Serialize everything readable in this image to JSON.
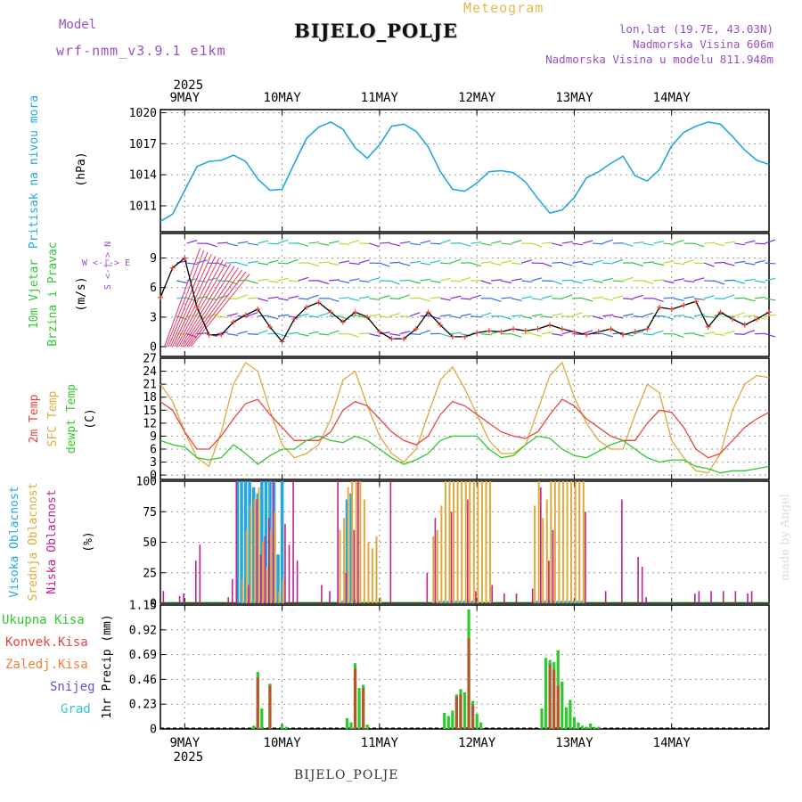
{
  "header": {
    "model_label": "Model",
    "model_name": "wrf-nmm_v3.9.1  e1km",
    "meteogram_label": "Meteogram",
    "station": "BIJELO_POLJE",
    "lonlat": "lon,lat (19.7E, 43.03N)",
    "elevation": "Nadmorska Visina 606m",
    "model_elevation": "Nadmorska Visina u modelu 811.948m"
  },
  "footer": {
    "station": "BIJELO_POLJE",
    "signature": "made by Angel"
  },
  "time_axis": {
    "year": "2025",
    "days": [
      "9MAY",
      "10MAY",
      "11MAY",
      "12MAY",
      "13MAY",
      "14MAY"
    ]
  },
  "colors": {
    "pressure": "#22a7e0",
    "t2m": "#e8453c",
    "sfc": "#e0a93a",
    "dewpt": "#2ec92e",
    "cloud_high": "#22a7e0",
    "cloud_mid": "#e0a93a",
    "cloud_low": "#c0208e",
    "precip_total": "#2ec92e",
    "precip_conv": "#e8453c",
    "purple_label": "#9b4fc4"
  },
  "panels": {
    "pressure": {
      "label_left": "Pritisak na nivou mora",
      "unit": "(hPa)",
      "ticks": [
        "1011",
        "1014",
        "1017",
        "1020"
      ]
    },
    "wind": {
      "label_left_1": "10m Vjetar",
      "label_left_2": "Brzina i Pravac",
      "unit": "(m/s)",
      "ticks": [
        "0",
        "3",
        "6",
        "9"
      ],
      "compass": "W <-|-> E",
      "compass_v": "S <-|-> N"
    },
    "temp": {
      "label_1": "2m Temp",
      "label_2": "SFC Temp",
      "label_3": "dewpt Temp",
      "unit": "(C)",
      "ticks": [
        "0",
        "3",
        "6",
        "9",
        "12",
        "15",
        "18",
        "21",
        "24",
        "27"
      ]
    },
    "cloud": {
      "label_1": "Visoka Oblacnost",
      "label_2": "Srednja Oblacnost",
      "label_3": "Niska Oblacnost",
      "unit": "(%)",
      "ticks": [
        "0",
        "25",
        "50",
        "75",
        "100"
      ]
    },
    "precip": {
      "legend": [
        "Ukupna Kisa",
        "Konvek.Kisa",
        "Zaledj.Kisa",
        "Snijeg",
        "Grad"
      ],
      "unit": "1hr Precip (mm)",
      "ticks": [
        "0",
        "0.23",
        "0.46",
        "0.69",
        "0.92",
        "1.15"
      ]
    }
  },
  "chart_data": [
    {
      "type": "line",
      "title": "",
      "ylabel": "Pritisak na nivou mora (hPa)",
      "ylim": [
        1008.5,
        1020.3
      ],
      "x_unit": "hours from 9 MAY 00 UTC",
      "series": [
        {
          "name": "Pritisak na nivou mora",
          "x": [
            -6,
            -3,
            0,
            3,
            6,
            9,
            12,
            15,
            18,
            21,
            24,
            27,
            30,
            33,
            36,
            39,
            42,
            45,
            48,
            51,
            54,
            57,
            60,
            63,
            66,
            69,
            72,
            75,
            78,
            81,
            84,
            87,
            90,
            93,
            96,
            99,
            102,
            105,
            108,
            111,
            114,
            117,
            120,
            123,
            126,
            129,
            132,
            135,
            138,
            141,
            144
          ],
          "y": [
            1009.5,
            1010.2,
            1012.5,
            1014.8,
            1015.3,
            1015.4,
            1015.9,
            1015.3,
            1013.6,
            1012.5,
            1012.6,
            1015.1,
            1017.5,
            1018.6,
            1019.1,
            1018.4,
            1016.6,
            1015.6,
            1016.9,
            1018.7,
            1018.9,
            1018.2,
            1016.7,
            1014.3,
            1012.6,
            1012.4,
            1013.2,
            1014.3,
            1014.4,
            1014.2,
            1013.3,
            1011.7,
            1010.3,
            1010.6,
            1011.8,
            1013.7,
            1014.3,
            1015.1,
            1015.8,
            1013.9,
            1013.4,
            1014.5,
            1016.8,
            1018.1,
            1018.7,
            1019.1,
            1018.9,
            1017.7,
            1016.4,
            1015.4,
            1015.0
          ]
        }
      ]
    },
    {
      "type": "line",
      "title": "",
      "ylabel": "10m Vjetar Brzina i Pravac (m/s)",
      "ylim": [
        -1,
        11.5
      ],
      "x_unit": "hours from 9 MAY 00 UTC",
      "series": [
        {
          "name": "Brzina",
          "x": [
            -6,
            -3,
            0,
            3,
            6,
            9,
            12,
            15,
            18,
            21,
            24,
            27,
            30,
            33,
            36,
            39,
            42,
            45,
            48,
            51,
            54,
            57,
            60,
            63,
            66,
            69,
            72,
            75,
            78,
            81,
            84,
            87,
            90,
            93,
            96,
            99,
            102,
            105,
            108,
            111,
            114,
            117,
            120,
            123,
            126,
            129,
            132,
            135,
            138,
            141,
            144
          ],
          "y": [
            5,
            8,
            9,
            4,
            1.2,
            1.2,
            2.5,
            3.2,
            3.8,
            2,
            0.5,
            2.8,
            4,
            4.5,
            3.5,
            2.5,
            3.5,
            3,
            1.5,
            0.8,
            0.8,
            1.8,
            3.5,
            2.2,
            1,
            1,
            1.4,
            1.6,
            1.5,
            1.8,
            1.6,
            1.8,
            2.2,
            1.8,
            1.5,
            1.2,
            1.5,
            1.8,
            1.2,
            1.5,
            1.8,
            4,
            3.8,
            4.2,
            4.6,
            2,
            3.5,
            2.8,
            2.2,
            2.8,
            3.5
          ]
        }
      ]
    },
    {
      "type": "line",
      "title": "",
      "ylabel": "Temp (C)",
      "ylim": [
        -1,
        27
      ],
      "x_unit": "hours from 9 MAY 00 UTC",
      "series": [
        {
          "name": "2m Temp",
          "x": [
            -6,
            -3,
            0,
            3,
            6,
            9,
            12,
            15,
            18,
            21,
            24,
            27,
            30,
            33,
            36,
            39,
            42,
            45,
            48,
            51,
            54,
            57,
            60,
            63,
            66,
            69,
            72,
            75,
            78,
            81,
            84,
            87,
            90,
            93,
            96,
            99,
            102,
            105,
            108,
            111,
            114,
            117,
            120,
            123,
            126,
            129,
            132,
            135,
            138,
            141,
            144
          ],
          "y": [
            17,
            15,
            10,
            6,
            6,
            9,
            13,
            16.5,
            17.5,
            14,
            11,
            8,
            8,
            8,
            10,
            15,
            17,
            16,
            13,
            10,
            8,
            7,
            9,
            14,
            17,
            16,
            14,
            12,
            10,
            9,
            8.5,
            10,
            14,
            17.5,
            16,
            13,
            11,
            9,
            8,
            8,
            12,
            15,
            14.5,
            11,
            6,
            4,
            5,
            8,
            11,
            13,
            14.5
          ]
        },
        {
          "name": "SFC Temp",
          "x": [
            -6,
            -3,
            0,
            3,
            6,
            9,
            12,
            15,
            18,
            21,
            24,
            27,
            30,
            33,
            36,
            39,
            42,
            45,
            48,
            51,
            54,
            57,
            60,
            63,
            66,
            69,
            72,
            75,
            78,
            81,
            84,
            87,
            90,
            93,
            96,
            99,
            102,
            105,
            108,
            111,
            114,
            117,
            120,
            123,
            126,
            129,
            132,
            135,
            138,
            141,
            144
          ],
          "y": [
            21,
            17,
            10,
            4,
            2,
            10,
            21,
            26,
            24,
            15,
            7,
            4,
            5,
            7,
            13,
            22,
            24,
            16,
            9,
            5,
            3,
            6,
            14,
            22,
            25,
            20,
            14,
            8,
            5,
            5,
            7,
            15,
            23,
            26,
            18,
            12,
            8,
            6,
            6,
            14,
            21,
            19,
            8,
            4,
            1,
            0.5,
            5,
            15,
            21,
            23,
            22.5
          ]
        },
        {
          "name": "dewpt Temp",
          "x": [
            -6,
            -3,
            0,
            3,
            6,
            9,
            12,
            15,
            18,
            21,
            24,
            27,
            30,
            33,
            36,
            39,
            42,
            45,
            48,
            51,
            54,
            57,
            60,
            63,
            66,
            69,
            72,
            75,
            78,
            81,
            84,
            87,
            90,
            93,
            96,
            99,
            102,
            105,
            108,
            111,
            114,
            117,
            120,
            123,
            126,
            129,
            132,
            135,
            138,
            141,
            144
          ],
          "y": [
            8,
            7,
            6.5,
            4,
            3.5,
            4,
            7,
            5,
            2.5,
            4.5,
            6,
            6,
            8,
            9,
            8,
            7.5,
            9,
            8,
            6,
            4,
            2.5,
            3.5,
            5,
            8,
            9,
            9,
            9,
            6,
            4,
            4.5,
            7,
            9,
            8.5,
            6,
            4.5,
            4,
            5.5,
            7,
            8,
            6,
            4,
            3,
            3.5,
            3.5,
            2,
            1.5,
            0.5,
            1,
            1,
            1.5,
            2
          ]
        }
      ]
    },
    {
      "type": "bar",
      "title": "",
      "ylabel": "Oblacnost (%)",
      "ylim": [
        0,
        100
      ],
      "x_unit": "hours from 9 MAY 00 UTC",
      "series": [
        {
          "name": "Visoka Oblacnost",
          "x": [
            13,
            14,
            15,
            16,
            17,
            18,
            19,
            20,
            21,
            22,
            23,
            24,
            39,
            40,
            41,
            42,
            63,
            64,
            65,
            66,
            67,
            68,
            69,
            70,
            71,
            72,
            87,
            88,
            89,
            90,
            91,
            92,
            93,
            94,
            95,
            96,
            97,
            98
          ],
          "y": [
            100,
            100,
            100,
            100,
            95,
            90,
            100,
            100,
            100,
            100,
            40,
            100,
            2,
            85,
            90,
            3,
            2,
            2,
            2,
            2,
            2,
            2,
            2,
            2,
            2,
            2,
            2,
            2,
            2,
            2,
            2,
            2,
            2,
            2,
            2,
            2,
            2,
            2
          ]
        },
        {
          "name": "Srednja Oblacnost",
          "x": [
            14,
            15,
            16,
            17,
            18,
            19,
            20,
            21,
            22,
            23,
            24,
            38,
            39,
            40,
            41,
            42,
            43,
            44,
            45,
            46,
            47,
            48,
            61,
            62,
            63,
            64,
            65,
            66,
            67,
            68,
            69,
            70,
            71,
            72,
            73,
            74,
            75,
            86,
            87,
            88,
            89,
            90,
            91,
            92,
            93,
            94,
            95,
            96,
            97,
            98
          ],
          "y": [
            20,
            60,
            80,
            85,
            95,
            50,
            30,
            60,
            75,
            10,
            20,
            60,
            70,
            95,
            100,
            100,
            100,
            85,
            50,
            45,
            55,
            5,
            55,
            60,
            80,
            100,
            100,
            100,
            100,
            100,
            100,
            100,
            100,
            100,
            100,
            100,
            100,
            80,
            100,
            70,
            85,
            100,
            100,
            100,
            100,
            100,
            100,
            100,
            100,
            100
          ]
        },
        {
          "name": "Niska Oblacnost",
          "x": [
            -5,
            -1,
            0,
            3,
            4,
            11,
            12,
            13,
            16,
            18,
            19,
            20,
            21,
            22,
            25,
            26,
            27,
            28,
            34,
            36,
            38,
            40,
            42,
            43,
            51,
            60,
            62,
            66,
            70,
            72,
            76,
            79,
            82,
            86,
            88,
            90,
            91,
            99,
            104,
            108,
            112,
            113,
            114,
            126,
            127,
            130,
            133,
            136,
            139,
            140
          ],
          "y": [
            10,
            6,
            8,
            35,
            48,
            5,
            20,
            100,
            15,
            85,
            40,
            55,
            70,
            100,
            65,
            48,
            100,
            35,
            15,
            10,
            100,
            25,
            60,
            100,
            100,
            25,
            70,
            75,
            85,
            10,
            15,
            8,
            8,
            12,
            95,
            35,
            60,
            75,
            10,
            85,
            38,
            30,
            5,
            8,
            10,
            10,
            10,
            10,
            8,
            10
          ]
        }
      ]
    },
    {
      "type": "bar",
      "title": "",
      "ylabel": "1hr Precip (mm)",
      "ylim": [
        0,
        1.15
      ],
      "x_unit": "hours from 9 MAY 00 UTC",
      "series": [
        {
          "name": "Ukupna Kisa",
          "x": [
            17,
            18,
            19,
            21,
            24,
            25,
            40,
            41,
            42,
            43,
            44,
            45,
            64,
            65,
            66,
            67,
            68,
            69,
            70,
            71,
            72,
            73,
            88,
            89,
            90,
            91,
            92,
            93,
            94,
            95,
            96,
            97,
            98,
            99,
            100,
            101,
            102
          ],
          "y": [
            0.03,
            0.53,
            0.19,
            0.42,
            0.04,
            0.02,
            0.1,
            0.06,
            0.61,
            0.38,
            0.41,
            0.04,
            0.15,
            0.12,
            0.17,
            0.32,
            0.37,
            0.34,
            1.11,
            0.26,
            0.14,
            0.06,
            0.19,
            0.66,
            0.64,
            0.62,
            0.73,
            0.44,
            0.2,
            0.27,
            0.11,
            0.06,
            0.03,
            0.02,
            0.05,
            0.02,
            0.02
          ]
        },
        {
          "name": "Konvek.Kisa",
          "x": [
            18,
            21,
            42,
            44,
            67,
            68,
            70,
            71,
            90,
            91,
            92
          ],
          "y": [
            0.48,
            0.4,
            0.56,
            0.38,
            0.3,
            0.32,
            0.84,
            0.22,
            0.6,
            0.55,
            0.4
          ]
        }
      ]
    }
  ]
}
